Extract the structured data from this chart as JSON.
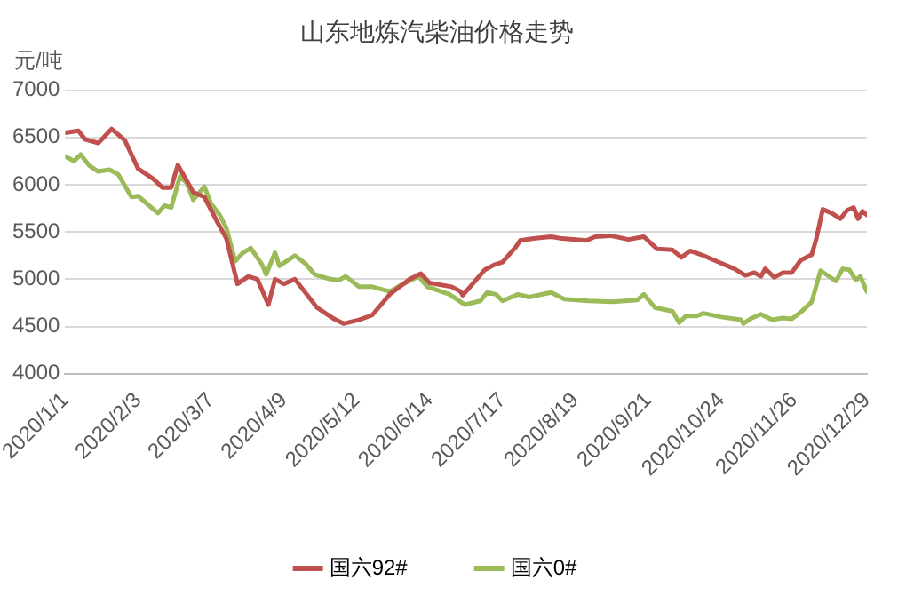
{
  "chart_data": {
    "type": "line",
    "title": "山东地炼汽柴油价格走势",
    "ylabel": "元/吨",
    "xlim": [
      "2020-01-01",
      "2020-12-29"
    ],
    "xticks": [
      {
        "value": "2020-01-01",
        "label": "2020/1/1"
      },
      {
        "value": "2020-02-03",
        "label": "2020/2/3"
      },
      {
        "value": "2020-03-07",
        "label": "2020/3/7"
      },
      {
        "value": "2020-04-09",
        "label": "2020/4/9"
      },
      {
        "value": "2020-05-12",
        "label": "2020/5/12"
      },
      {
        "value": "2020-06-14",
        "label": "2020/6/14"
      },
      {
        "value": "2020-07-17",
        "label": "2020/7/17"
      },
      {
        "value": "2020-08-19",
        "label": "2020/8/19"
      },
      {
        "value": "2020-09-21",
        "label": "2020/9/21"
      },
      {
        "value": "2020-10-24",
        "label": "2020/10/24"
      },
      {
        "value": "2020-11-26",
        "label": "2020/11/26"
      },
      {
        "value": "2020-12-29",
        "label": "2020/12/29"
      }
    ],
    "ylim": [
      4000,
      7000
    ],
    "yticks": [
      4000,
      4500,
      5000,
      5500,
      6000,
      6500,
      7000
    ],
    "grid": "y",
    "legend": "bottom",
    "marker": "none",
    "line_style": "solid",
    "series": [
      {
        "name": "国六92#",
        "color": "#c0504d",
        "x": [
          "2020-01-01",
          "2020-01-07",
          "2020-01-10",
          "2020-01-16",
          "2020-01-22",
          "2020-01-28",
          "2020-02-03",
          "2020-02-10",
          "2020-02-14",
          "2020-02-18",
          "2020-02-21",
          "2020-02-28",
          "2020-03-04",
          "2020-03-10",
          "2020-03-14",
          "2020-03-19",
          "2020-03-24",
          "2020-03-28",
          "2020-04-02",
          "2020-04-05",
          "2020-04-09",
          "2020-04-14",
          "2020-04-24",
          "2020-05-01",
          "2020-05-06",
          "2020-05-13",
          "2020-05-19",
          "2020-05-27",
          "2020-06-05",
          "2020-06-10",
          "2020-06-14",
          "2020-06-24",
          "2020-06-28",
          "2020-06-29",
          "2020-07-02",
          "2020-07-09",
          "2020-07-13",
          "2020-07-17",
          "2020-07-23",
          "2020-07-25",
          "2020-07-31",
          "2020-08-08",
          "2020-08-13",
          "2020-08-24",
          "2020-08-28",
          "2020-09-04",
          "2020-09-12",
          "2020-09-19",
          "2020-09-25",
          "2020-10-02",
          "2020-10-06",
          "2020-10-10",
          "2020-10-16",
          "2020-10-23",
          "2020-10-30",
          "2020-11-04",
          "2020-11-08",
          "2020-11-11",
          "2020-11-13",
          "2020-11-17",
          "2020-11-21",
          "2020-11-25",
          "2020-11-29",
          "2020-12-04",
          "2020-12-06",
          "2020-12-09",
          "2020-12-13",
          "2020-12-17",
          "2020-12-20",
          "2020-12-23",
          "2020-12-25",
          "2020-12-27",
          "2020-12-29"
        ],
        "values": [
          6550,
          6570,
          6480,
          6440,
          6590,
          6470,
          6170,
          6060,
          5970,
          5970,
          6210,
          5920,
          5870,
          5600,
          5430,
          4950,
          5030,
          5000,
          4730,
          5000,
          4950,
          5000,
          4700,
          4590,
          4530,
          4570,
          4620,
          4840,
          5000,
          5060,
          4960,
          4920,
          4870,
          4830,
          4910,
          5100,
          5150,
          5180,
          5340,
          5410,
          5430,
          5450,
          5430,
          5410,
          5450,
          5460,
          5420,
          5450,
          5320,
          5310,
          5230,
          5300,
          5250,
          5180,
          5110,
          5040,
          5070,
          5030,
          5110,
          5020,
          5070,
          5070,
          5200,
          5260,
          5420,
          5740,
          5700,
          5640,
          5730,
          5760,
          5640,
          5720,
          5680
        ]
      },
      {
        "name": "国六0#",
        "color": "#9bbb59",
        "x": [
          "2020-01-01",
          "2020-01-05",
          "2020-01-08",
          "2020-01-12",
          "2020-01-16",
          "2020-01-21",
          "2020-01-25",
          "2020-01-31",
          "2020-02-03",
          "2020-02-07",
          "2020-02-12",
          "2020-02-15",
          "2020-02-18",
          "2020-02-22",
          "2020-02-25",
          "2020-02-28",
          "2020-03-04",
          "2020-03-07",
          "2020-03-11",
          "2020-03-14",
          "2020-03-18",
          "2020-03-21",
          "2020-03-25",
          "2020-03-30",
          "2020-04-01",
          "2020-04-05",
          "2020-04-07",
          "2020-04-14",
          "2020-04-19",
          "2020-04-23",
          "2020-04-30",
          "2020-05-04",
          "2020-05-07",
          "2020-05-13",
          "2020-05-19",
          "2020-05-27",
          "2020-06-02",
          "2020-06-09",
          "2020-06-13",
          "2020-06-23",
          "2020-06-30",
          "2020-07-07",
          "2020-07-10",
          "2020-07-14",
          "2020-07-17",
          "2020-07-24",
          "2020-07-29",
          "2020-08-08",
          "2020-08-14",
          "2020-08-25",
          "2020-09-05",
          "2020-09-16",
          "2020-09-19",
          "2020-09-24",
          "2020-10-02",
          "2020-10-05",
          "2020-10-08",
          "2020-10-13",
          "2020-10-16",
          "2020-10-24",
          "2020-11-02",
          "2020-11-03",
          "2020-11-07",
          "2020-11-11",
          "2020-11-16",
          "2020-11-21",
          "2020-11-25",
          "2020-11-29",
          "2020-12-04",
          "2020-12-08",
          "2020-12-15",
          "2020-12-18",
          "2020-12-21",
          "2020-12-24",
          "2020-12-26",
          "2020-12-29"
        ],
        "values": [
          6300,
          6250,
          6320,
          6200,
          6140,
          6160,
          6110,
          5870,
          5880,
          5800,
          5700,
          5780,
          5760,
          6090,
          6020,
          5840,
          5980,
          5800,
          5680,
          5540,
          5190,
          5270,
          5330,
          5160,
          5050,
          5280,
          5140,
          5250,
          5160,
          5050,
          5000,
          4990,
          5030,
          4920,
          4920,
          4870,
          4950,
          5030,
          4920,
          4840,
          4730,
          4770,
          4860,
          4840,
          4770,
          4840,
          4810,
          4860,
          4790,
          4770,
          4760,
          4780,
          4840,
          4700,
          4660,
          4540,
          4610,
          4610,
          4640,
          4600,
          4570,
          4530,
          4590,
          4630,
          4570,
          4590,
          4580,
          4650,
          4760,
          5090,
          4980,
          5110,
          5100,
          4990,
          5030,
          4870
        ]
      }
    ]
  }
}
